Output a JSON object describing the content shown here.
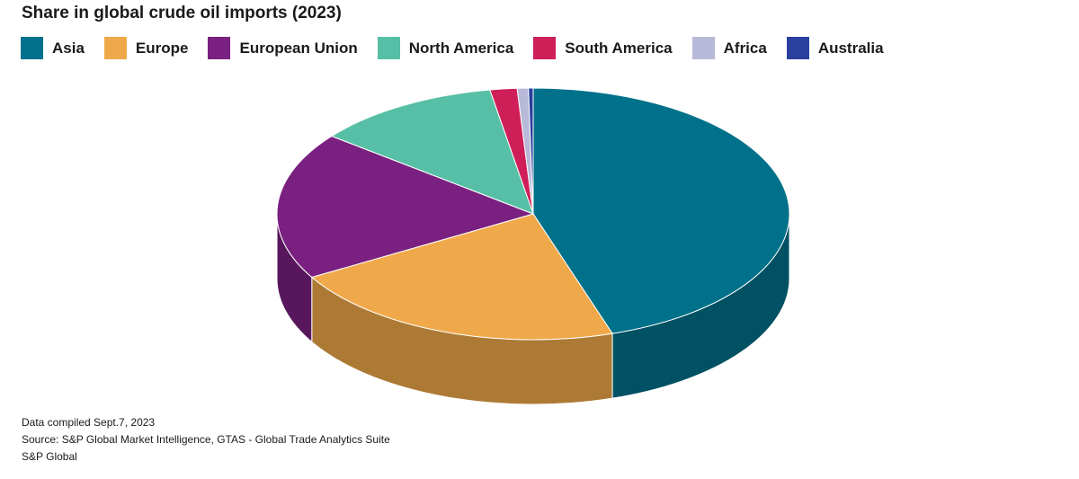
{
  "chart_data": {
    "type": "pie3d",
    "title": "Share in global crude oil imports (2023)",
    "categories": [
      "Asia",
      "Europe",
      "European Union",
      "North America",
      "South America",
      "Africa",
      "Australia"
    ],
    "values": [
      45,
      21.6,
      19,
      11.7,
      1.7,
      0.7,
      0.3
    ],
    "colors": [
      "#00718a",
      "#f0a94a",
      "#7a2080",
      "#57bfa5",
      "#cf1f58",
      "#b8b8d8",
      "#2a3f9e"
    ],
    "legend": "top-left",
    "notes": [
      "Data compiled Sept.7, 2023",
      "Source: S&P Global Market Intelligence, GTAS - Global Trade Analytics Suite",
      "S&P Global"
    ]
  }
}
